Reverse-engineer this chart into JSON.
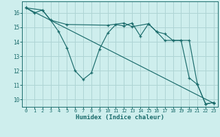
{
  "background_color": "#ceeeed",
  "grid_color": "#aed4d4",
  "line_color": "#1a6b6b",
  "xlabel": "Humidex (Indice chaleur)",
  "xlim": [
    -0.5,
    23.5
  ],
  "ylim": [
    9.5,
    16.8
  ],
  "yticks": [
    10,
    11,
    12,
    13,
    14,
    15,
    16
  ],
  "xticks": [
    0,
    1,
    2,
    3,
    4,
    5,
    6,
    7,
    8,
    9,
    10,
    11,
    12,
    13,
    14,
    15,
    16,
    17,
    18,
    19,
    20,
    21,
    22,
    23
  ],
  "series": [
    {
      "x": [
        0,
        1,
        2,
        3,
        4,
        5,
        6,
        7,
        8,
        9,
        10,
        11,
        12,
        13,
        14,
        15,
        16,
        17,
        18,
        19,
        20,
        21,
        22,
        23
      ],
      "y": [
        16.35,
        16.0,
        16.2,
        15.5,
        14.7,
        13.6,
        12.0,
        11.4,
        11.85,
        13.5,
        14.6,
        15.2,
        15.1,
        15.3,
        14.4,
        15.25,
        14.7,
        14.1,
        14.1,
        14.1,
        11.5,
        11.05,
        9.7,
        9.8
      ]
    },
    {
      "x": [
        0,
        2,
        3,
        5,
        10,
        12,
        13,
        15,
        16,
        17,
        18,
        19,
        20,
        21,
        22,
        23
      ],
      "y": [
        16.35,
        16.2,
        15.5,
        15.2,
        15.15,
        15.3,
        15.05,
        15.25,
        14.7,
        14.55,
        14.1,
        14.1,
        14.1,
        11.05,
        9.7,
        9.8
      ]
    },
    {
      "x": [
        0,
        23
      ],
      "y": [
        16.35,
        9.75
      ]
    }
  ]
}
